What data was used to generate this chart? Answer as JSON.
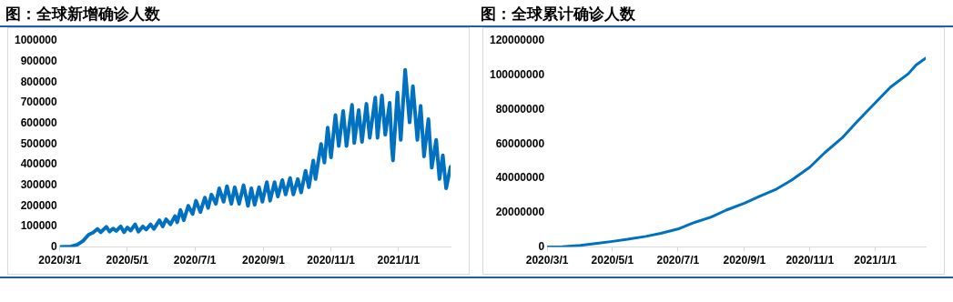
{
  "chart_data": [
    {
      "type": "line",
      "title": "图：全球新增确诊人数",
      "x": [
        "2020-03-01",
        "2020-03-11",
        "2020-03-17",
        "2020-03-22",
        "2020-03-27",
        "2020-03-31",
        "2020-04-04",
        "2020-04-07",
        "2020-04-12",
        "2020-04-15",
        "2020-04-18",
        "2020-04-21",
        "2020-04-25",
        "2020-04-28",
        "2020-05-01",
        "2020-05-04",
        "2020-05-08",
        "2020-05-11",
        "2020-05-15",
        "2020-05-18",
        "2020-05-22",
        "2020-05-25",
        "2020-05-30",
        "2020-06-02",
        "2020-06-05",
        "2020-06-09",
        "2020-06-13",
        "2020-06-15",
        "2020-06-18",
        "2020-06-21",
        "2020-06-25",
        "2020-06-29",
        "2020-07-02",
        "2020-07-06",
        "2020-07-10",
        "2020-07-13",
        "2020-07-16",
        "2020-07-20",
        "2020-07-23",
        "2020-07-27",
        "2020-07-30",
        "2020-08-03",
        "2020-08-06",
        "2020-08-10",
        "2020-08-14",
        "2020-08-18",
        "2020-08-21",
        "2020-08-24",
        "2020-08-28",
        "2020-08-31",
        "2020-09-04",
        "2020-09-07",
        "2020-09-11",
        "2020-09-14",
        "2020-09-18",
        "2020-09-21",
        "2020-09-25",
        "2020-09-28",
        "2020-10-02",
        "2020-10-05",
        "2020-10-09",
        "2020-10-12",
        "2020-10-16",
        "2020-10-18",
        "2020-10-23",
        "2020-10-26",
        "2020-10-29",
        "2020-11-01",
        "2020-11-05",
        "2020-11-08",
        "2020-11-12",
        "2020-11-15",
        "2020-11-20",
        "2020-11-22",
        "2020-11-26",
        "2020-11-29",
        "2020-12-03",
        "2020-12-06",
        "2020-12-11",
        "2020-12-13",
        "2020-12-17",
        "2020-12-20",
        "2020-12-24",
        "2020-12-26",
        "2020-12-27",
        "2020-12-31",
        "2021-01-03",
        "2021-01-07",
        "2021-01-11",
        "2021-01-14",
        "2021-01-18",
        "2021-01-21",
        "2021-01-24",
        "2021-01-28",
        "2021-01-31",
        "2021-02-04",
        "2021-02-07",
        "2021-02-10",
        "2021-02-13",
        "2021-02-17"
      ],
      "series": [
        {
          "color": "#0070c0",
          "values": [
            0,
            3000,
            12000,
            30000,
            60000,
            70000,
            88000,
            72000,
            98000,
            75000,
            90000,
            78000,
            100000,
            72000,
            95000,
            80000,
            110000,
            75000,
            100000,
            85000,
            110000,
            88000,
            130000,
            100000,
            135000,
            110000,
            150000,
            120000,
            180000,
            130000,
            200000,
            160000,
            225000,
            170000,
            240000,
            190000,
            255000,
            210000,
            285000,
            220000,
            295000,
            210000,
            290000,
            210000,
            300000,
            200000,
            285000,
            205000,
            290000,
            220000,
            315000,
            225000,
            315000,
            245000,
            325000,
            255000,
            335000,
            255000,
            330000,
            265000,
            370000,
            290000,
            420000,
            330000,
            500000,
            410000,
            580000,
            435000,
            640000,
            490000,
            660000,
            490000,
            690000,
            505000,
            665000,
            510000,
            695000,
            530000,
            725000,
            530000,
            735000,
            545000,
            700000,
            480000,
            420000,
            750000,
            520000,
            860000,
            605000,
            780000,
            520000,
            685000,
            440000,
            620000,
            385000,
            520000,
            330000,
            445000,
            285000,
            390000
          ]
        }
      ],
      "xlim": [
        "2020-03-01",
        "2021-02-17"
      ],
      "xticks": [
        {
          "value": "2020-03-01",
          "label": "2020/3/1"
        },
        {
          "value": "2020-05-01",
          "label": "2020/5/1"
        },
        {
          "value": "2020-07-01",
          "label": "2020/7/1"
        },
        {
          "value": "2020-09-01",
          "label": "2020/9/1"
        },
        {
          "value": "2020-11-01",
          "label": "2020/11/1"
        },
        {
          "value": "2021-01-01",
          "label": "2021/1/1"
        }
      ],
      "ylim": [
        0,
        1000000
      ],
      "yticks": [
        0,
        100000,
        200000,
        300000,
        400000,
        500000,
        600000,
        700000,
        800000,
        900000,
        1000000
      ],
      "grid": false,
      "legend": false,
      "marker": "none",
      "line_style": "solid"
    },
    {
      "type": "line",
      "title": "图：全球累计确诊人数",
      "x": [
        "2020-03-01",
        "2020-03-15",
        "2020-04-01",
        "2020-04-15",
        "2020-05-01",
        "2020-05-15",
        "2020-06-01",
        "2020-06-15",
        "2020-07-01",
        "2020-07-15",
        "2020-08-01",
        "2020-08-15",
        "2020-09-01",
        "2020-09-15",
        "2020-10-01",
        "2020-10-15",
        "2020-11-01",
        "2020-11-15",
        "2020-12-01",
        "2020-12-15",
        "2021-01-01",
        "2021-01-15",
        "2021-02-01",
        "2021-02-08",
        "2021-02-17"
      ],
      "series": [
        {
          "color": "#0070c0",
          "values": [
            0,
            200000,
            1000000,
            2000000,
            3300000,
            4500000,
            6200000,
            8000000,
            10500000,
            14000000,
            17500000,
            21500000,
            25500000,
            29500000,
            33800000,
            39000000,
            46500000,
            55000000,
            63500000,
            73000000,
            84000000,
            93000000,
            101000000,
            106000000,
            110000000
          ]
        }
      ],
      "xlim": [
        "2020-03-01",
        "2021-02-17"
      ],
      "xticks": [
        {
          "value": "2020-03-01",
          "label": "2020/3/1"
        },
        {
          "value": "2020-05-01",
          "label": "2020/5/1"
        },
        {
          "value": "2020-07-01",
          "label": "2020/7/1"
        },
        {
          "value": "2020-09-01",
          "label": "2020/9/1"
        },
        {
          "value": "2020-11-01",
          "label": "2020/11/1"
        },
        {
          "value": "2021-01-01",
          "label": "2021/1/1"
        }
      ],
      "ylim": [
        0,
        120000000
      ],
      "yticks": [
        0,
        20000000,
        40000000,
        60000000,
        80000000,
        100000000,
        120000000
      ],
      "grid": false,
      "legend": false,
      "marker": "none",
      "line_style": "solid"
    }
  ]
}
